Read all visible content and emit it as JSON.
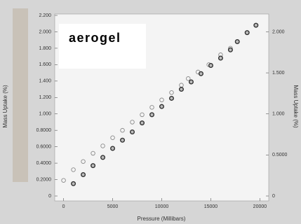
{
  "chart_data": {
    "type": "scatter",
    "annotation": "aerogel",
    "xlabel": "Pressure (Millibars)",
    "ylabel": "Mass Uptake (%)",
    "y2label": "Mass Uptake (%)",
    "xlim": [
      -900,
      20900
    ],
    "ylim": [
      0,
      2.2
    ],
    "y2lim": [
      0,
      2.2
    ],
    "xticks": [
      0,
      5000,
      10000,
      15000,
      20000
    ],
    "yticks": [
      0,
      {
        "value": 0.2,
        "label": "0.2000"
      },
      {
        "value": 0.4,
        "label": "0.4000"
      },
      {
        "value": 0.6,
        "label": "0.6000"
      },
      {
        "value": 0.8,
        "label": "0.8000"
      },
      {
        "value": 1.0,
        "label": "1.000"
      },
      {
        "value": 1.2,
        "label": "1.200"
      },
      {
        "value": 1.4,
        "label": "1.400"
      },
      {
        "value": 1.6,
        "label": "1.600"
      },
      {
        "value": 1.8,
        "label": "1.800"
      },
      {
        "value": 2.0,
        "label": "2.000"
      },
      {
        "value": 2.2,
        "label": "2.200"
      }
    ],
    "y2ticks": [
      0,
      {
        "value": 0.5,
        "label": "0.5000"
      },
      {
        "value": 1.0,
        "label": "1.000"
      },
      {
        "value": 1.5,
        "label": "1.500"
      },
      {
        "value": 2.0,
        "label": "2.000"
      }
    ],
    "series": [
      {
        "color": "#8a8a8a",
        "x": [
          0,
          1000,
          2000,
          3000,
          4000,
          5000,
          6000,
          7000,
          8000,
          9000,
          10000,
          11000,
          12000,
          12700,
          13700,
          14800,
          16000,
          17000,
          17700,
          18700,
          19600
        ],
        "values": [
          0.19,
          0.32,
          0.42,
          0.52,
          0.61,
          0.71,
          0.8,
          0.9,
          0.99,
          1.08,
          1.17,
          1.26,
          1.35,
          1.43,
          1.51,
          1.6,
          1.72,
          1.8,
          1.88,
          1.99,
          2.08
        ]
      },
      {
        "color": "#333333",
        "x": [
          1000,
          2000,
          3000,
          4000,
          5000,
          6000,
          7000,
          8000,
          9000,
          10000,
          11000,
          12000,
          13000,
          14000,
          15000,
          16000,
          17000,
          17700,
          18700,
          19600
        ],
        "values": [
          0.15,
          0.26,
          0.37,
          0.47,
          0.58,
          0.68,
          0.78,
          0.89,
          0.99,
          1.09,
          1.19,
          1.3,
          1.39,
          1.49,
          1.59,
          1.68,
          1.78,
          1.88,
          1.99,
          2.08
        ]
      }
    ]
  }
}
